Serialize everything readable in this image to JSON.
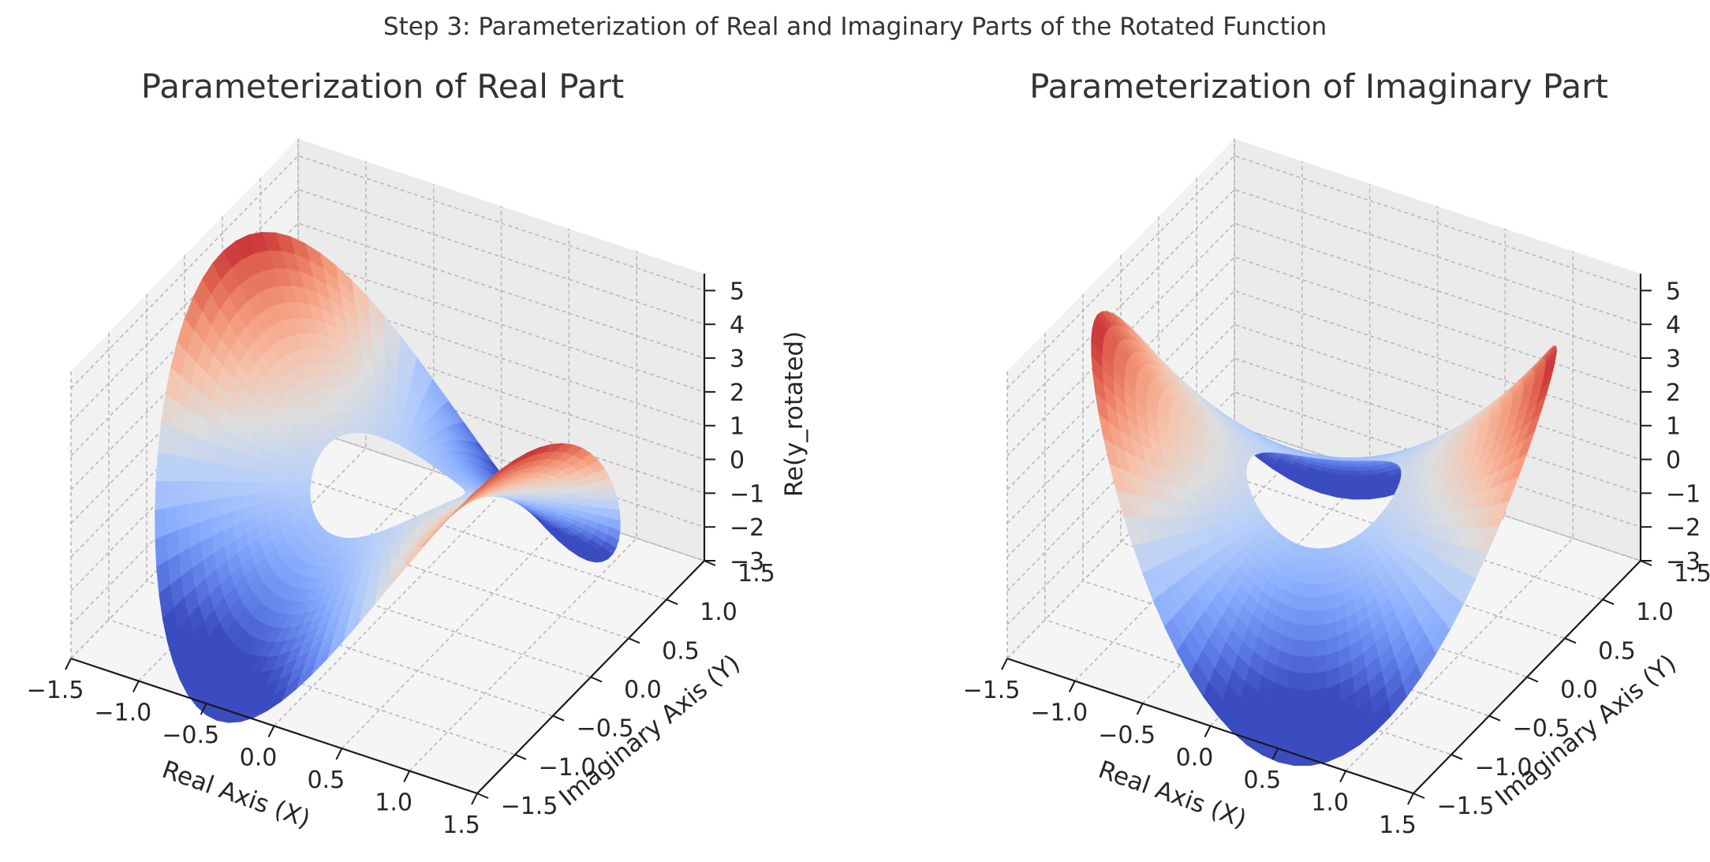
{
  "figure": {
    "suptitle": "Step 3: Parameterization of Real and Imaginary Parts of the Rotated Function"
  },
  "colors": {
    "pane_back": "#ebebeb",
    "pane_side": "#f2f2f2",
    "pane_floor": "#f5f5f5",
    "grid": "#b8b8b8",
    "axis": "#1a1a1a",
    "colormap_low": "#3b4cc0",
    "colormap_mid": "#dddddd",
    "colormap_high": "#b40426"
  },
  "chart_data": [
    {
      "type": "surface3d",
      "title": "Parameterization of Real Part",
      "xlabel": "Real Axis (X)",
      "ylabel": "Imaginary Axis (Y)",
      "zlabel": "Re(y_rotated)",
      "colormap": "coolwarm",
      "surface": "annulus r in [0.5, 1.5], z = Re((x+iy)^2 * e^(i*pi/4)) scaled",
      "xlim": [
        -1.5,
        1.5
      ],
      "ylim": [
        -1.5,
        1.5
      ],
      "zlim": [
        -3,
        5.5
      ],
      "xticks": [
        "−1.5",
        "−1.0",
        "−0.5",
        "0.0",
        "0.5",
        "1.0",
        "1.5"
      ],
      "yticks": [
        "−1.5",
        "−1.0",
        "−0.5",
        "0.0",
        "0.5",
        "1.0",
        "1.5"
      ],
      "zticks": [
        "−3",
        "−2",
        "−1",
        "0",
        "1",
        "2",
        "3",
        "4",
        "5"
      ]
    },
    {
      "type": "surface3d",
      "title": "Parameterization of Imaginary Part",
      "xlabel": "Real Axis (X)",
      "ylabel": "Imaginary Axis (Y)",
      "zlabel": "",
      "colormap": "coolwarm",
      "surface": "annulus r in [0.5, 1.5], z = Im((x+iy)^2 * e^(i*pi/4)) scaled",
      "xlim": [
        -1.5,
        1.5
      ],
      "ylim": [
        -1.5,
        1.5
      ],
      "zlim": [
        -3,
        5.5
      ],
      "xticks": [
        "−1.5",
        "−1.0",
        "−0.5",
        "0.0",
        "0.5",
        "1.0",
        "1.5"
      ],
      "yticks": [
        "−1.5",
        "−1.0",
        "−0.5",
        "0.0",
        "0.5",
        "1.0",
        "1.5"
      ],
      "zticks": [
        "−3",
        "−2",
        "−1",
        "0",
        "1",
        "2",
        "3",
        "4",
        "5"
      ]
    }
  ]
}
